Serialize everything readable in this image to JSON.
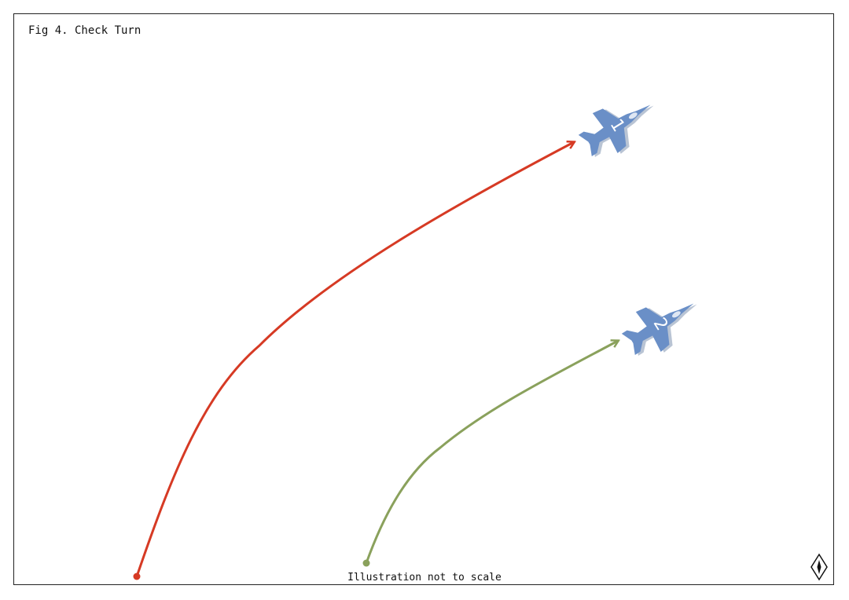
{
  "title": "Fig 4. Check Turn",
  "caption": "Illustration not to scale",
  "colors": {
    "aircraft": "#6a8fc7",
    "aircraft_shadow": "#b9c4d4",
    "path_lead": "#d63a24",
    "path_wing": "#8aa15c",
    "frame": "#222222"
  },
  "aircraft": [
    {
      "label": "1"
    },
    {
      "label": "2"
    }
  ],
  "icons": {
    "compass": "north-arrow-icon"
  }
}
